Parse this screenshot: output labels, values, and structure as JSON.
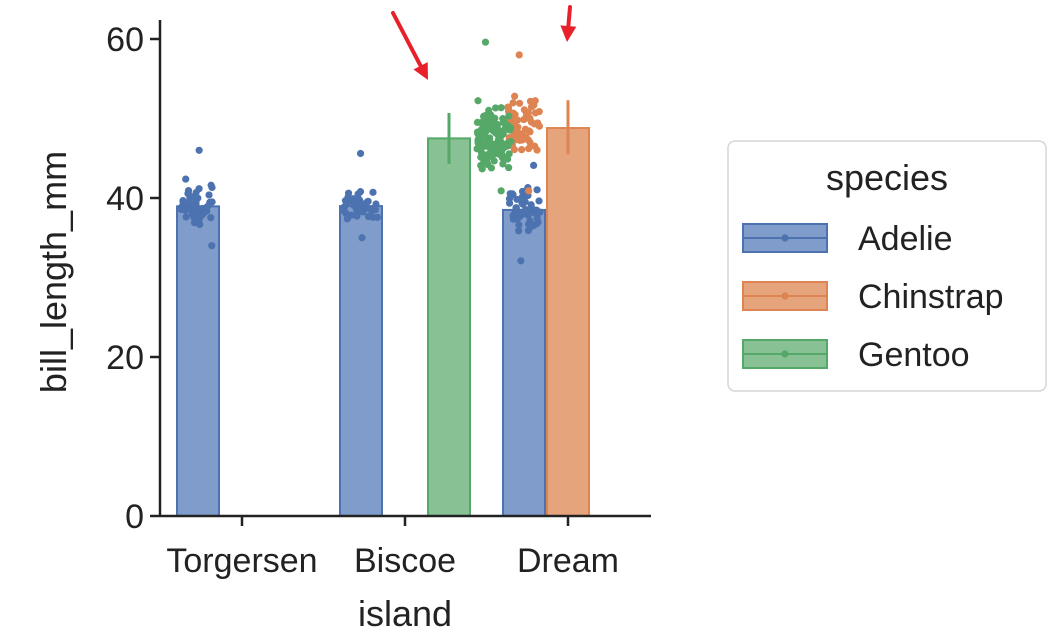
{
  "chart_data": {
    "type": "bar",
    "xlabel": "island",
    "ylabel": "bill_length_mm",
    "categories": [
      "Torgersen",
      "Biscoe",
      "Dream"
    ],
    "ylim": [
      0,
      60
    ],
    "yticks": [
      0,
      20,
      40,
      60
    ],
    "grid": false,
    "legend": {
      "title": "species",
      "placement": "right"
    },
    "series": [
      {
        "name": "Adelie",
        "color": "#4c72b0",
        "values": [
          38.95,
          38.98,
          38.5
        ],
        "ci": [
          [
            38.2,
            39.7
          ],
          [
            38.2,
            39.7
          ],
          [
            37.8,
            39.2
          ]
        ],
        "strip": [
          {
            "island": "Torgersen",
            "min": 34,
            "max": 46,
            "center": 39,
            "n": 52
          },
          {
            "island": "Biscoe",
            "min": 35,
            "max": 45.6,
            "center": 39,
            "n": 44
          },
          {
            "island": "Dream",
            "min": 32.1,
            "max": 44.1,
            "center": 38.5,
            "n": 56
          }
        ]
      },
      {
        "name": "Chinstrap",
        "color": "#dd8452",
        "values": [
          null,
          null,
          48.8
        ],
        "ci": [
          null,
          null,
          [
            45.5,
            52.3
          ]
        ],
        "strip": [
          {
            "island": "Dream",
            "min": 40.9,
            "max": 58,
            "center": 48.8,
            "n": 68
          }
        ]
      },
      {
        "name": "Gentoo",
        "color": "#55a868",
        "values": [
          null,
          47.5,
          null
        ],
        "ci": [
          null,
          [
            44.3,
            50.7
          ],
          null
        ],
        "strip": [
          {
            "island": "Biscoe",
            "min": 40.9,
            "max": 59.6,
            "center": 47.5,
            "n": 124
          }
        ]
      }
    ],
    "annotations": [
      {
        "type": "arrow",
        "color": "#e8202a",
        "target": "Gentoo strip maximum (Biscoe)"
      },
      {
        "type": "arrow",
        "color": "#e8202a",
        "target": "Chinstrap strip maximum (Dream)"
      }
    ]
  }
}
